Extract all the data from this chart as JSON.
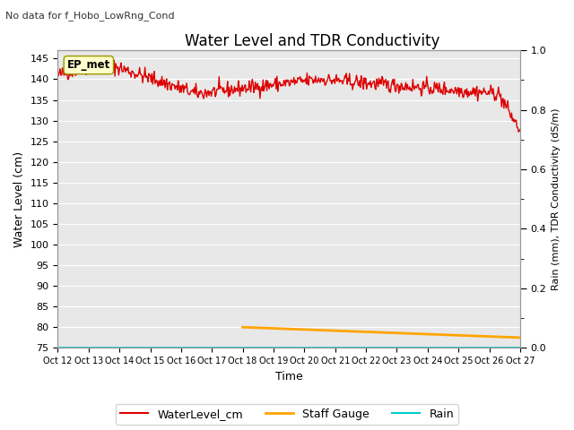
{
  "title": "Water Level and TDR Conductivity",
  "subtitle": "No data for f_Hobo_LowRng_Cond",
  "xlabel": "Time",
  "ylabel_left": "Water Level (cm)",
  "ylabel_right": "Rain (mm), TDR Conductivity (dS/m)",
  "site_label": "EP_met",
  "ylim_left": [
    75,
    147
  ],
  "ylim_right": [
    0.0,
    1.0
  ],
  "yticks_left": [
    75,
    80,
    85,
    90,
    95,
    100,
    105,
    110,
    115,
    120,
    125,
    130,
    135,
    140,
    145
  ],
  "yticks_right": [
    0.0,
    0.2,
    0.4,
    0.6,
    0.8,
    1.0
  ],
  "xtick_labels": [
    "Oct 12",
    "Oct 13",
    "Oct 14",
    "Oct 15",
    "Oct 16",
    "Oct 17",
    "Oct 18",
    "Oct 19",
    "Oct 20",
    "Oct 21",
    "Oct 22",
    "Oct 23",
    "Oct 24",
    "Oct 25",
    "Oct 26",
    "Oct 27"
  ],
  "water_level_color": "#dd0000",
  "staff_gauge_color": "#FFA500",
  "rain_color": "#00CCCC",
  "background_color": "#e8e8e8",
  "grid_color": "#ffffff",
  "legend_labels": [
    "WaterLevel_cm",
    "Staff Gauge",
    "Rain"
  ]
}
